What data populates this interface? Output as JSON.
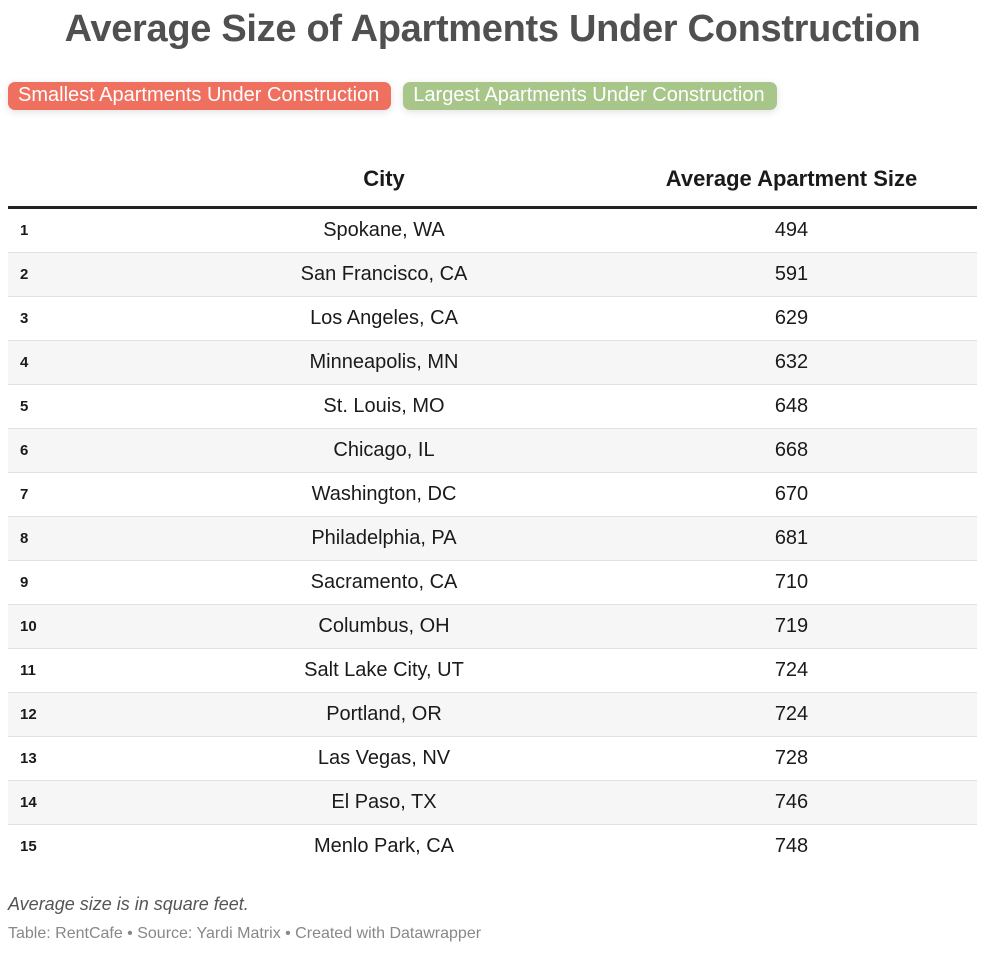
{
  "title": "Average Size of Apartments Under Construction",
  "legend": [
    {
      "label": "Smallest Apartments Under Construction",
      "color": "#f07060"
    },
    {
      "label": "Largest Apartments Under Construction",
      "color": "#a8c68a"
    }
  ],
  "table": {
    "headers": [
      "",
      "City",
      "Average Apartment Size"
    ],
    "rows": [
      {
        "rank": "1",
        "city": "Spokane, WA",
        "size": "494"
      },
      {
        "rank": "2",
        "city": "San Francisco, CA",
        "size": "591"
      },
      {
        "rank": "3",
        "city": "Los Angeles, CA",
        "size": "629"
      },
      {
        "rank": "4",
        "city": "Minneapolis, MN",
        "size": "632"
      },
      {
        "rank": "5",
        "city": "St. Louis, MO",
        "size": "648"
      },
      {
        "rank": "6",
        "city": "Chicago, IL",
        "size": "668"
      },
      {
        "rank": "7",
        "city": "Washington, DC",
        "size": "670"
      },
      {
        "rank": "8",
        "city": "Philadelphia, PA",
        "size": "681"
      },
      {
        "rank": "9",
        "city": "Sacramento, CA",
        "size": "710"
      },
      {
        "rank": "10",
        "city": "Columbus, OH",
        "size": "719"
      },
      {
        "rank": "11",
        "city": "Salt Lake City, UT",
        "size": "724"
      },
      {
        "rank": "12",
        "city": "Portland, OR",
        "size": "724"
      },
      {
        "rank": "13",
        "city": "Las Vegas, NV",
        "size": "728"
      },
      {
        "rank": "14",
        "city": "El Paso, TX",
        "size": "746"
      },
      {
        "rank": "15",
        "city": "Menlo Park, CA",
        "size": "748"
      }
    ]
  },
  "notes": "Average size is in square feet.",
  "byline": "Table: RentCafe • Source: Yardi Matrix • Created with Datawrapper"
}
